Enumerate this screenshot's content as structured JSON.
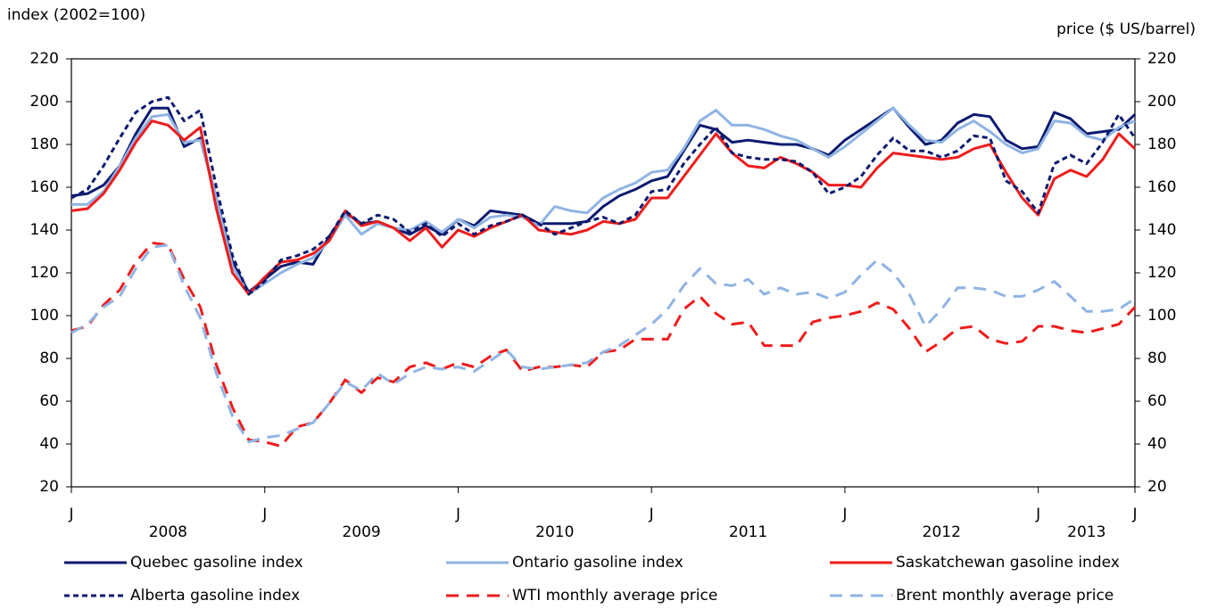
{
  "chart_data": {
    "type": "line",
    "y_label": "index (2002=100)",
    "y2_label": "price ($ US/barrel)",
    "categories": [
      "J",
      null,
      null,
      null,
      null,
      null,
      null,
      null,
      null,
      null,
      null,
      null,
      "J",
      null,
      null,
      null,
      null,
      null,
      null,
      null,
      null,
      null,
      null,
      null,
      "J",
      null,
      null,
      null,
      null,
      null,
      null,
      null,
      null,
      null,
      null,
      null,
      "J",
      null,
      null,
      null,
      null,
      null,
      null,
      null,
      null,
      null,
      null,
      null,
      "J",
      null,
      null,
      null,
      null,
      null,
      null,
      null,
      null,
      null,
      null,
      null,
      "J",
      null,
      null,
      null,
      null,
      null,
      "J"
    ],
    "years": [
      "2008",
      "2009",
      "2010",
      "2011",
      "2012",
      "2013"
    ],
    "ylim": [
      20,
      220
    ],
    "yticks": [
      20,
      40,
      60,
      80,
      100,
      120,
      140,
      160,
      180,
      200,
      220
    ],
    "y2lim": [
      20,
      220
    ],
    "y2ticks": [
      20,
      40,
      60,
      80,
      100,
      120,
      140,
      160,
      180,
      200,
      220
    ],
    "series": [
      {
        "name": "Quebec gasoline index",
        "color": "#0b1a6f",
        "dash": "solid",
        "values": [
          156,
          157,
          161,
          170,
          185,
          197,
          197,
          179,
          183,
          155,
          125,
          111,
          117,
          123,
          125,
          124,
          137,
          148,
          143,
          144,
          141,
          138,
          142,
          138,
          145,
          142,
          149,
          148,
          147,
          143,
          143,
          143,
          144,
          151,
          156,
          159,
          163,
          165,
          177,
          189,
          187,
          181,
          182,
          181,
          180,
          180,
          178,
          175,
          182,
          187,
          192,
          197,
          188,
          180,
          182,
          190,
          194,
          193,
          182,
          178,
          179,
          195,
          192,
          185,
          186,
          187,
          194
        ]
      },
      {
        "name": "Ontario gasoline index",
        "color": "#8fb4e3",
        "dash": "solid",
        "values": [
          152,
          152,
          158,
          170,
          183,
          193,
          194,
          181,
          182,
          155,
          123,
          110,
          115,
          120,
          124,
          127,
          135,
          147,
          138,
          143,
          141,
          140,
          144,
          139,
          145,
          141,
          146,
          147,
          146,
          142,
          151,
          149,
          148,
          155,
          159,
          162,
          167,
          168,
          178,
          191,
          196,
          189,
          189,
          187,
          184,
          182,
          178,
          174,
          179,
          185,
          191,
          197,
          189,
          182,
          181,
          187,
          191,
          186,
          180,
          176,
          178,
          191,
          190,
          184,
          182,
          188,
          191
        ]
      },
      {
        "name": "Saskatchewan gasoline index",
        "color": "#ee1c1c",
        "dash": "solid",
        "values": [
          149,
          150,
          157,
          168,
          181,
          191,
          189,
          182,
          188,
          150,
          120,
          110,
          118,
          125,
          126,
          129,
          135,
          149,
          142,
          144,
          141,
          135,
          141,
          132,
          140,
          137,
          141,
          144,
          147,
          140,
          139,
          138,
          140,
          144,
          143,
          145,
          155,
          155,
          165,
          175,
          185,
          176,
          170,
          169,
          174,
          171,
          167,
          161,
          161,
          160,
          169,
          176,
          175,
          174,
          173,
          174,
          178,
          180,
          167,
          155,
          147,
          164,
          168,
          165,
          173,
          185,
          178
        ]
      },
      {
        "name": "Alberta gasoline index",
        "color": "#0b1a6f",
        "dash": "short",
        "values": [
          155,
          159,
          170,
          183,
          195,
          200,
          202,
          191,
          196,
          160,
          128,
          110,
          116,
          126,
          128,
          131,
          137,
          149,
          143,
          147,
          145,
          139,
          143,
          137,
          143,
          138,
          142,
          144,
          147,
          143,
          138,
          141,
          144,
          146,
          143,
          147,
          158,
          159,
          171,
          180,
          188,
          176,
          174,
          173,
          173,
          172,
          167,
          157,
          160,
          165,
          175,
          183,
          177,
          177,
          174,
          177,
          184,
          183,
          163,
          158,
          148,
          171,
          175,
          171,
          181,
          194,
          183
        ]
      },
      {
        "name": "WTI monthly average price",
        "color": "#ee1c1c",
        "dash": "long",
        "axis": "y2",
        "values": [
          93,
          95,
          105,
          112,
          125,
          134,
          133,
          117,
          104,
          77,
          57,
          42,
          41,
          39,
          48,
          50,
          59,
          70,
          64,
          71,
          69,
          76,
          78,
          75,
          78,
          76,
          81,
          84,
          74,
          76,
          76,
          77,
          76,
          83,
          84,
          89,
          89,
          89,
          103,
          109,
          101,
          96,
          97,
          86,
          86,
          86,
          97,
          99,
          100,
          102,
          106,
          103,
          94,
          83,
          88,
          94,
          95,
          89,
          87,
          88,
          95,
          95,
          93,
          92,
          94,
          96,
          104
        ]
      },
      {
        "name": "Brent monthly average price",
        "color": "#8fb4e3",
        "dash": "long",
        "axis": "y2",
        "values": [
          92,
          96,
          104,
          109,
          122,
          132,
          133,
          114,
          99,
          73,
          53,
          41,
          43,
          44,
          47,
          50,
          59,
          69,
          65,
          73,
          68,
          73,
          76,
          75,
          76,
          74,
          79,
          84,
          76,
          75,
          76,
          77,
          78,
          83,
          86,
          91,
          96,
          103,
          114,
          122,
          115,
          114,
          117,
          110,
          113,
          110,
          111,
          108,
          111,
          119,
          126,
          120,
          110,
          95,
          103,
          113,
          113,
          112,
          109,
          109,
          112,
          116,
          109,
          102,
          102,
          103,
          108
        ]
      }
    ]
  }
}
